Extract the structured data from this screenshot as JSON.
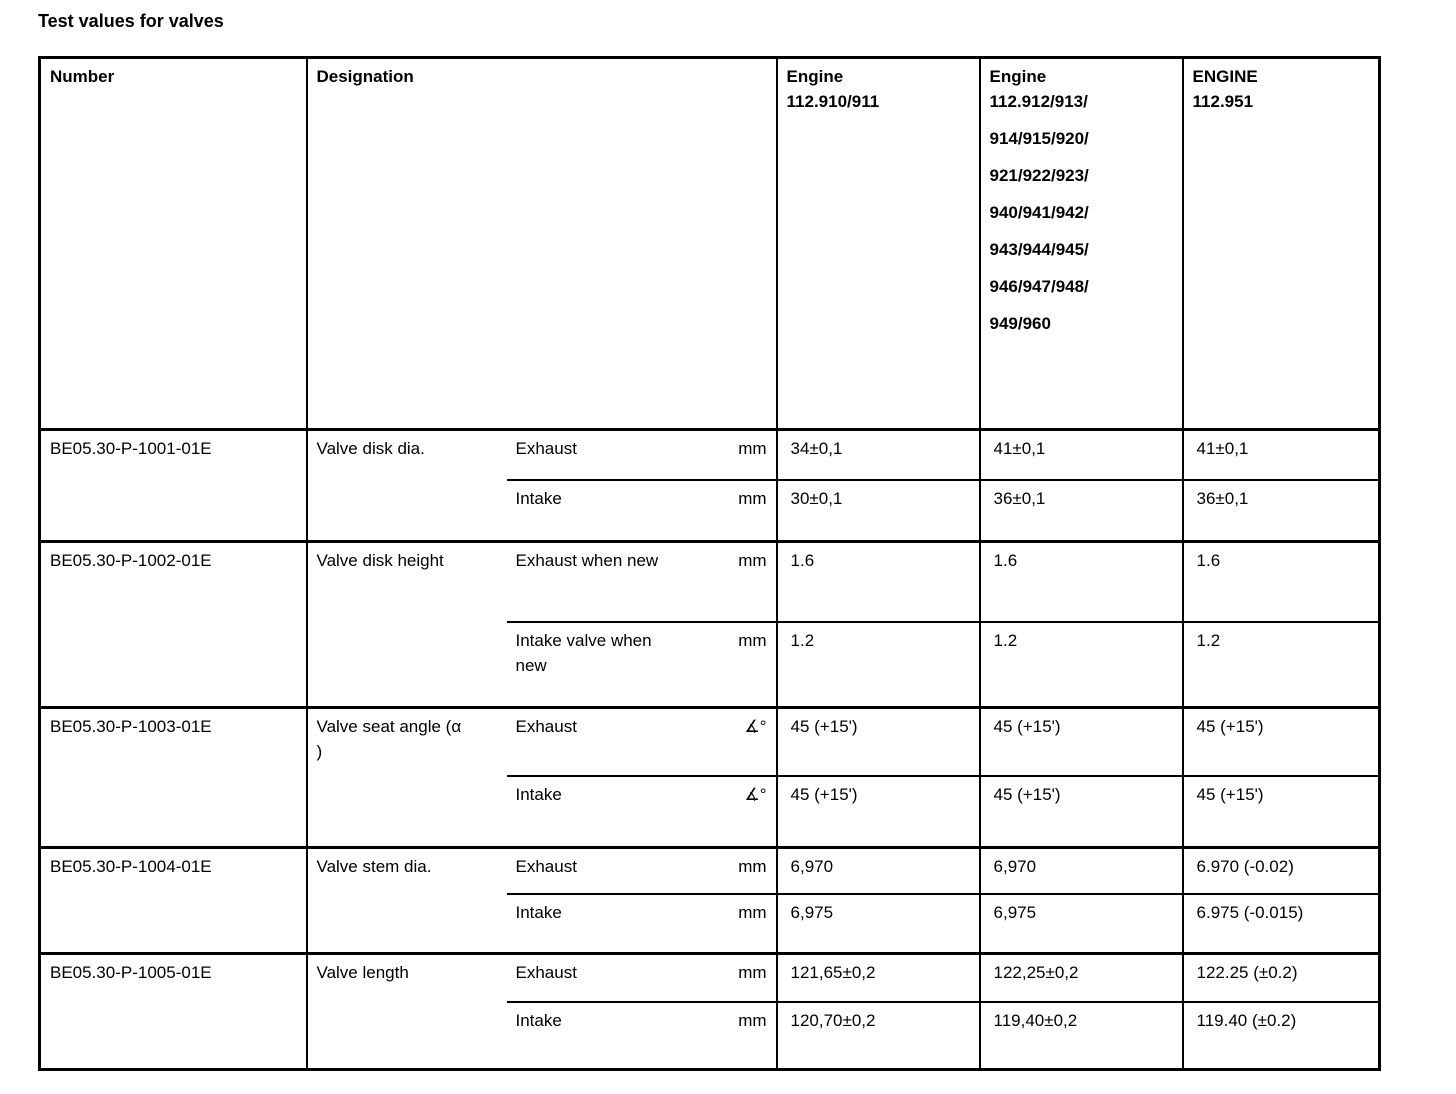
{
  "title": "Test values for valves",
  "table": {
    "headers": {
      "number": "Number",
      "designation": "Designation",
      "engine1": {
        "lines": [
          "Engine",
          "112.910/911"
        ]
      },
      "engine2": {
        "lines": [
          "Engine",
          "112.912/913/",
          "914/915/920/",
          "921/922/923/",
          "940/941/942/",
          "943/944/945/",
          "946/947/948/",
          "949/960"
        ]
      },
      "engine3": {
        "lines": [
          "ENGINE",
          "112.951"
        ]
      }
    },
    "rows": [
      {
        "number": "BE05.30-P-1001-01E",
        "designation": "Valve disk dia.",
        "subrows": [
          {
            "label": "Exhaust",
            "unit": "mm",
            "values": [
              "34±0,1",
              "41±0,1",
              "41±0,1"
            ]
          },
          {
            "label": "Intake",
            "unit": "mm",
            "values": [
              "30±0,1",
              "36±0,1",
              "36±0,1"
            ]
          }
        ]
      },
      {
        "number": "BE05.30-P-1002-01E",
        "designation": "Valve disk height",
        "subrows": [
          {
            "label": "Exhaust when new",
            "unit": "mm",
            "values": [
              "1.6",
              "1.6",
              "1.6"
            ]
          },
          {
            "label": "Intake valve when new",
            "unit": "mm",
            "values": [
              "1.2",
              "1.2",
              "1.2"
            ]
          }
        ]
      },
      {
        "number": "BE05.30-P-1003-01E",
        "designation": "Valve seat angle (α\n)",
        "subrows": [
          {
            "label": "Exhaust",
            "unit": "∡°",
            "values": [
              "45 (+15')",
              "45 (+15')",
              "45 (+15')"
            ]
          },
          {
            "label": "Intake",
            "unit": "∡°",
            "values": [
              "45 (+15')",
              "45 (+15')",
              "45 (+15')"
            ]
          }
        ]
      },
      {
        "number": "BE05.30-P-1004-01E",
        "designation": "Valve stem dia.",
        "subrows": [
          {
            "label": "Exhaust",
            "unit": "mm",
            "values": [
              "6,970",
              "6,970",
              "6.970 (-0.02)"
            ]
          },
          {
            "label": "Intake",
            "unit": "mm",
            "values": [
              "6,975",
              "6,975",
              "6.975 (-0.015)"
            ]
          }
        ]
      },
      {
        "number": "BE05.30-P-1005-01E",
        "designation": "Valve length",
        "subrows": [
          {
            "label": "Exhaust",
            "unit": "mm",
            "values": [
              "121,65±0,2",
              "122,25±0,2",
              "122.25 (±0.2)"
            ]
          },
          {
            "label": "Intake",
            "unit": "mm",
            "values": [
              "120,70±0,2",
              "119,40±0,2",
              "119.40 (±0.2)"
            ]
          }
        ]
      }
    ]
  }
}
